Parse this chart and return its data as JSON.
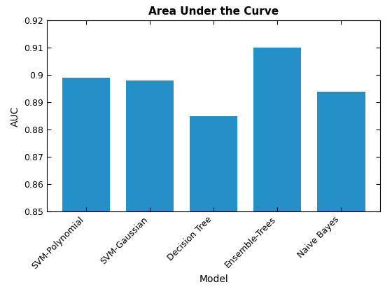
{
  "categories": [
    "SVM-Polynomial",
    "SVM-Gaussian",
    "Decision Tree",
    "Ensemble-Trees",
    "Naive Bayes"
  ],
  "values": [
    0.899,
    0.898,
    0.885,
    0.91,
    0.894
  ],
  "bar_color": "#2490C8",
  "title": "Area Under the Curve",
  "xlabel": "Model",
  "ylabel": "AUC",
  "ylim": [
    0.85,
    0.92
  ],
  "yticks": [
    0.85,
    0.86,
    0.87,
    0.88,
    0.89,
    0.9,
    0.91,
    0.92
  ],
  "ytick_labels": [
    "0.85",
    "0.86",
    "0.87",
    "0.88",
    "0.89",
    "0.9",
    "0.91",
    "0.92"
  ],
  "title_fontsize": 11,
  "label_fontsize": 10,
  "tick_fontsize": 9,
  "bar_width": 0.75
}
